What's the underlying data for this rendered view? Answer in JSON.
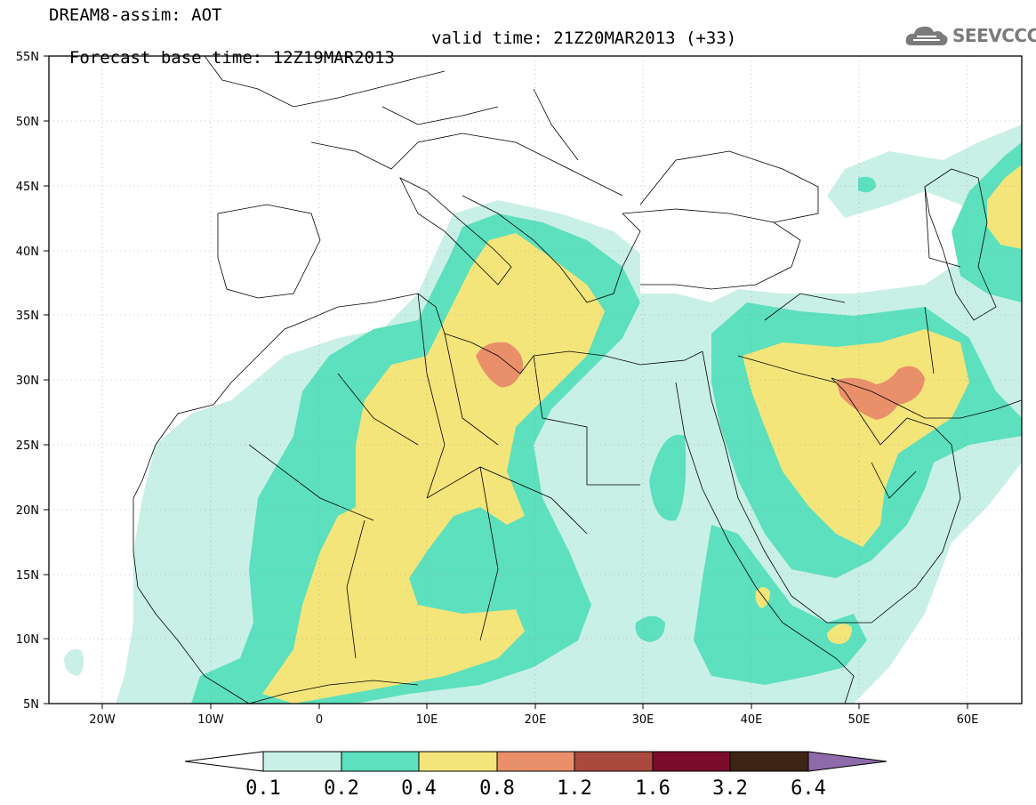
{
  "header": {
    "title": "DREAM8-assim: AOT",
    "base_time": "Forecast base time: 12Z19MAR2013",
    "valid_time": "valid time: 21Z20MAR2013 (+33)"
  },
  "logo": {
    "text": "SEEVCCC",
    "icon": "cloud-icon",
    "color": "#7a7a7a"
  },
  "map": {
    "lon_range": [
      -25,
      65
    ],
    "lat_range": [
      5,
      55
    ],
    "lat_ticks": [
      "5N",
      "10N",
      "15N",
      "20N",
      "25N",
      "30N",
      "35N",
      "40N",
      "45N",
      "50N",
      "55N"
    ],
    "lon_ticks": [
      "20W",
      "10W",
      "0",
      "10E",
      "20E",
      "30E",
      "40E",
      "50E",
      "60E"
    ]
  },
  "colorbar": {
    "labels": [
      "0.1",
      "0.2",
      "0.4",
      "0.8",
      "1.2",
      "1.6",
      "3.2",
      "6.4"
    ],
    "colors": [
      "#c9f0e6",
      "#5ce0bd",
      "#f4e57a",
      "#e9906a",
      "#aa4a3e",
      "#7b0d2a",
      "#3e2414",
      "#8e6aaa"
    ],
    "under_color": "#ffffff"
  }
}
